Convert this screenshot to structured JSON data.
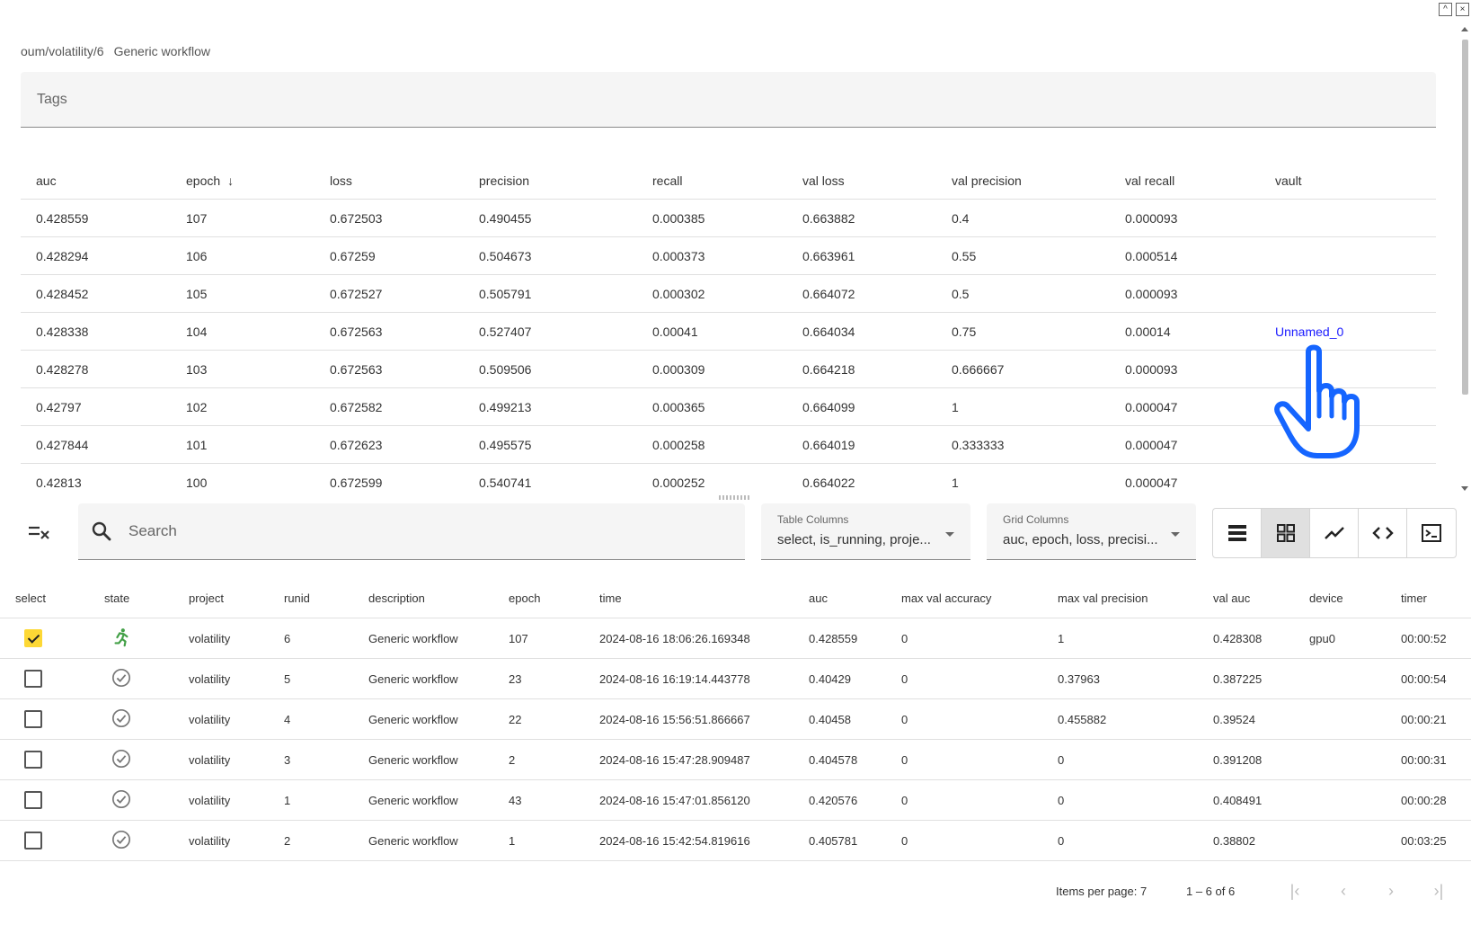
{
  "window": {
    "restore_label": "^",
    "close_label": "×"
  },
  "breadcrumb": {
    "path": "oum/volatility/6",
    "workflow": "Generic workflow"
  },
  "tags": {
    "placeholder": "Tags"
  },
  "metrics_grid": {
    "columns": [
      "auc",
      "epoch",
      "loss",
      "precision",
      "recall",
      "val loss",
      "val precision",
      "val recall",
      "vault"
    ],
    "sort_column": "epoch",
    "rows": [
      [
        "0.428559",
        "107",
        "0.672503",
        "0.490455",
        "0.000385",
        "0.663882",
        "0.4",
        "0.000093",
        ""
      ],
      [
        "0.428294",
        "106",
        "0.67259",
        "0.504673",
        "0.000373",
        "0.663961",
        "0.55",
        "0.000514",
        ""
      ],
      [
        "0.428452",
        "105",
        "0.672527",
        "0.505791",
        "0.000302",
        "0.664072",
        "0.5",
        "0.000093",
        ""
      ],
      [
        "0.428338",
        "104",
        "0.672563",
        "0.527407",
        "0.00041",
        "0.664034",
        "0.75",
        "0.00014",
        "Unnamed_0"
      ],
      [
        "0.428278",
        "103",
        "0.672563",
        "0.509506",
        "0.000309",
        "0.664218",
        "0.666667",
        "0.000093",
        ""
      ],
      [
        "0.42797",
        "102",
        "0.672582",
        "0.499213",
        "0.000365",
        "0.664099",
        "1",
        "0.000047",
        ""
      ],
      [
        "0.427844",
        "101",
        "0.672623",
        "0.495575",
        "0.000258",
        "0.664019",
        "0.333333",
        "0.000047",
        ""
      ],
      [
        "0.42813",
        "100",
        "0.672599",
        "0.540741",
        "0.000252",
        "0.664022",
        "1",
        "0.000047",
        ""
      ]
    ]
  },
  "toolbar": {
    "search_placeholder": "Search",
    "table_columns": {
      "label": "Table Columns",
      "value": "select, is_running, proje..."
    },
    "grid_columns": {
      "label": "Grid Columns",
      "value": "auc, epoch, loss, precisi..."
    },
    "view_buttons": [
      "list-view-icon",
      "grid-view-icon",
      "chart-view-icon",
      "code-view-icon",
      "terminal-view-icon"
    ],
    "active_view": "grid-view-icon"
  },
  "runs_table": {
    "columns": [
      "select",
      "state",
      "project",
      "runid",
      "description",
      "epoch",
      "time",
      "auc",
      "max val accuracy",
      "max val precision",
      "val auc",
      "device",
      "timer"
    ],
    "rows": [
      {
        "selected": true,
        "state": "running",
        "project": "volatility",
        "runid": "6",
        "description": "Generic workflow",
        "epoch": "107",
        "time": "2024-08-16 18:06:26.169348",
        "auc": "0.428559",
        "max_val_accuracy": "0",
        "max_val_precision": "1",
        "val_auc": "0.428308",
        "device": "gpu0",
        "timer": "00:00:52"
      },
      {
        "selected": false,
        "state": "completed",
        "project": "volatility",
        "runid": "5",
        "description": "Generic workflow",
        "epoch": "23",
        "time": "2024-08-16 16:19:14.443778",
        "auc": "0.40429",
        "max_val_accuracy": "0",
        "max_val_precision": "0.37963",
        "val_auc": "0.387225",
        "device": "",
        "timer": "00:00:54"
      },
      {
        "selected": false,
        "state": "completed",
        "project": "volatility",
        "runid": "4",
        "description": "Generic workflow",
        "epoch": "22",
        "time": "2024-08-16 15:56:51.866667",
        "auc": "0.40458",
        "max_val_accuracy": "0",
        "max_val_precision": "0.455882",
        "val_auc": "0.39524",
        "device": "",
        "timer": "00:00:21"
      },
      {
        "selected": false,
        "state": "completed",
        "project": "volatility",
        "runid": "3",
        "description": "Generic workflow",
        "epoch": "2",
        "time": "2024-08-16 15:47:28.909487",
        "auc": "0.404578",
        "max_val_accuracy": "0",
        "max_val_precision": "0",
        "val_auc": "0.391208",
        "device": "",
        "timer": "00:00:31"
      },
      {
        "selected": false,
        "state": "completed",
        "project": "volatility",
        "runid": "1",
        "description": "Generic workflow",
        "epoch": "43",
        "time": "2024-08-16 15:47:01.856120",
        "auc": "0.420576",
        "max_val_accuracy": "0",
        "max_val_precision": "0",
        "val_auc": "0.408491",
        "device": "",
        "timer": "00:00:28"
      },
      {
        "selected": false,
        "state": "completed",
        "project": "volatility",
        "runid": "2",
        "description": "Generic workflow",
        "epoch": "1",
        "time": "2024-08-16 15:42:54.819616",
        "auc": "0.405781",
        "max_val_accuracy": "0",
        "max_val_precision": "0",
        "val_auc": "0.38802",
        "device": "",
        "timer": "00:03:25"
      }
    ]
  },
  "paginator": {
    "items_per_page": "Items per page: 7",
    "range": "1 – 6 of 6"
  },
  "colors": {
    "accent_yellow": "#fdd835",
    "running_green": "#43a047",
    "link_blue": "#1a1aff",
    "cursor_blue": "#1565ff"
  }
}
